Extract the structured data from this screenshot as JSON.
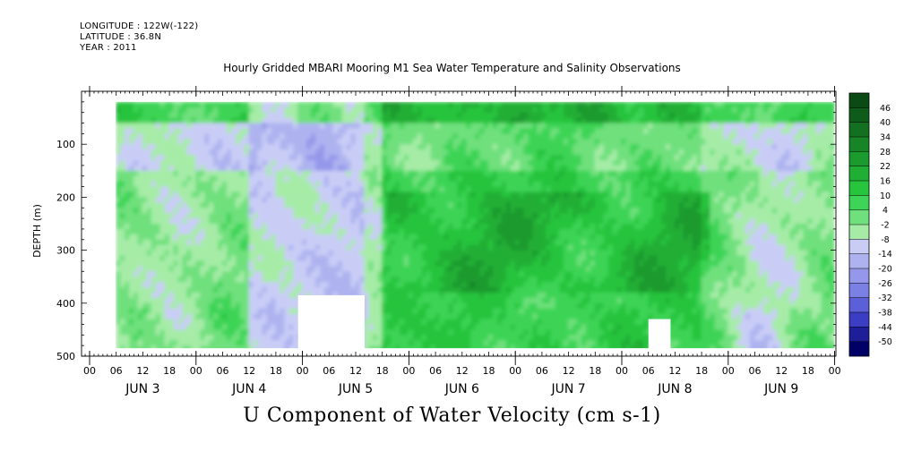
{
  "header": {
    "longitude": "LONGITUDE : 122W(-122)",
    "latitude": "LATITUDE : 36.8N",
    "year": "YEAR : 2011",
    "title": "Hourly Gridded MBARI Mooring M1 Sea Water Temperature and Salinity Observations"
  },
  "bottom_title": "U Component of Water Velocity (cm s-1)",
  "colors": {
    "positive_max": "#0b4a14",
    "positive_mid": "#26c43a",
    "positive_min": "#b9f0b9",
    "negative_min": "#c5c9f5",
    "negative_mid": "#8c8fe8",
    "negative_max": "#000066"
  },
  "chart_data": {
    "type": "heatmap",
    "title": "Hourly Gridded MBARI Mooring M1 Sea Water Temperature and Salinity Observations",
    "xlabel": "",
    "ylabel": "DEPTH (m)",
    "colorbar_label": "U Component of Water Velocity (cm s-1)",
    "y_range": [
      500,
      0
    ],
    "y_ticks": [
      100,
      200,
      300,
      400,
      500
    ],
    "y_tick_labels": [
      "100",
      "200",
      "300",
      "400",
      "500"
    ],
    "data_depth_range": [
      20,
      485
    ],
    "x_hour_tick_labels": [
      "00",
      "06",
      "12",
      "18",
      "00",
      "06",
      "12",
      "18",
      "00",
      "06",
      "12",
      "18",
      "00",
      "06",
      "12",
      "18",
      "00",
      "06",
      "12",
      "18",
      "00",
      "06",
      "12",
      "18",
      "00",
      "06",
      "12",
      "18",
      "00"
    ],
    "x_day_labels": [
      "JUN  3",
      "JUN  4",
      "JUN  5",
      "JUN  6",
      "JUN  7",
      "JUN  8",
      "JUN  9"
    ],
    "data_start": "JUN 3 06:00",
    "data_end": "JUN 9 23:00",
    "colorbar_levels": [
      "46",
      "40",
      "34",
      "28",
      "22",
      "16",
      "10",
      "4",
      "-2",
      "-8",
      "-14",
      "-20",
      "-26",
      "-32",
      "-38",
      "-44",
      "-50"
    ],
    "colorbar_colors": [
      "#0b4a14",
      "#0f5c1a",
      "#137021",
      "#178527",
      "#1b9a2e",
      "#20ae35",
      "#27c43e",
      "#3ed457",
      "#6fe07d",
      "#a6eca7",
      "#c9cdf6",
      "#aeb3f0",
      "#9598ea",
      "#7b80e4",
      "#5b5fd8",
      "#3b3ec2",
      "#1d1e98",
      "#000066"
    ],
    "gaps": [
      {
        "from": "JUN 4 23:00",
        "to": "JUN 5 14:00",
        "depth_top": 385,
        "note": "missing data near bottom"
      },
      {
        "from": "JUN 8 06:00",
        "to": "JUN 8 11:00",
        "depth_top": 430,
        "note": "missing data near bottom"
      }
    ],
    "pattern_summary": [
      {
        "period": "JUN 3 06 - JUN 4 12",
        "value_range": [
          -10,
          10
        ],
        "dominant": "mixed weak positive/negative"
      },
      {
        "period": "JUN 4 12 - JUN 5 12",
        "value_range": [
          -20,
          4
        ],
        "dominant": "negative (westward) through most of column"
      },
      {
        "period": "JUN 5 12 - JUN 7 18",
        "value_range": [
          4,
          22
        ],
        "dominant": "positive (eastward) at 200-400 m"
      },
      {
        "period": "JUN 7 18 - JUN 9 23",
        "value_range": [
          -14,
          10
        ],
        "dominant": "alternating, negative near surface and bottom"
      }
    ]
  }
}
